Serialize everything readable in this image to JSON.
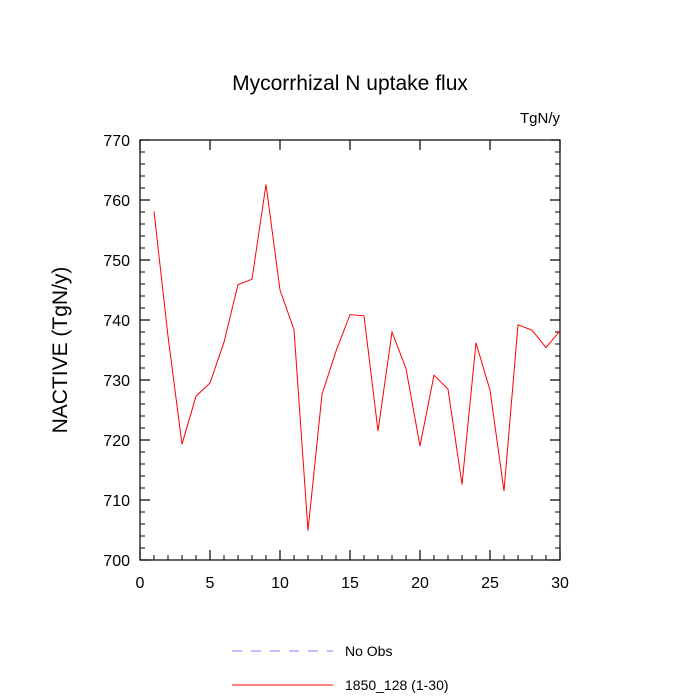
{
  "chart_data": {
    "type": "line",
    "title": "Mycorrhizal N uptake flux",
    "units_label": "TgN/y",
    "xlabel": "",
    "ylabel": "NACTIVE  (TgN/y)",
    "xlim": [
      0,
      30
    ],
    "ylim": [
      700,
      770
    ],
    "x_ticks": [
      0,
      5,
      10,
      15,
      20,
      25,
      30
    ],
    "y_ticks": [
      700,
      710,
      720,
      730,
      740,
      750,
      760,
      770
    ],
    "grid": false,
    "legend_position": "bottom",
    "series": [
      {
        "name": "1850_128 (1-30)",
        "color": "#ff0000",
        "style": "solid",
        "x": [
          1,
          2,
          3,
          4,
          5,
          6,
          7,
          8,
          9,
          10,
          11,
          12,
          13,
          14,
          15,
          16,
          17,
          18,
          19,
          20,
          21,
          22,
          23,
          24,
          25,
          26,
          27,
          28,
          29,
          30
        ],
        "y": [
          758.1,
          737.3,
          719.3,
          727.3,
          729.5,
          736.3,
          745.9,
          746.8,
          762.6,
          745.0,
          738.4,
          704.9,
          727.6,
          734.8,
          740.9,
          740.7,
          721.5,
          738.0,
          731.9,
          719.0,
          730.8,
          728.5,
          712.6,
          736.2,
          728.3,
          711.5,
          739.2,
          738.3,
          735.4,
          738.2
        ]
      },
      {
        "name": "No Obs",
        "color": "#8080ff",
        "style": "dashed",
        "x": [],
        "y": []
      }
    ]
  }
}
